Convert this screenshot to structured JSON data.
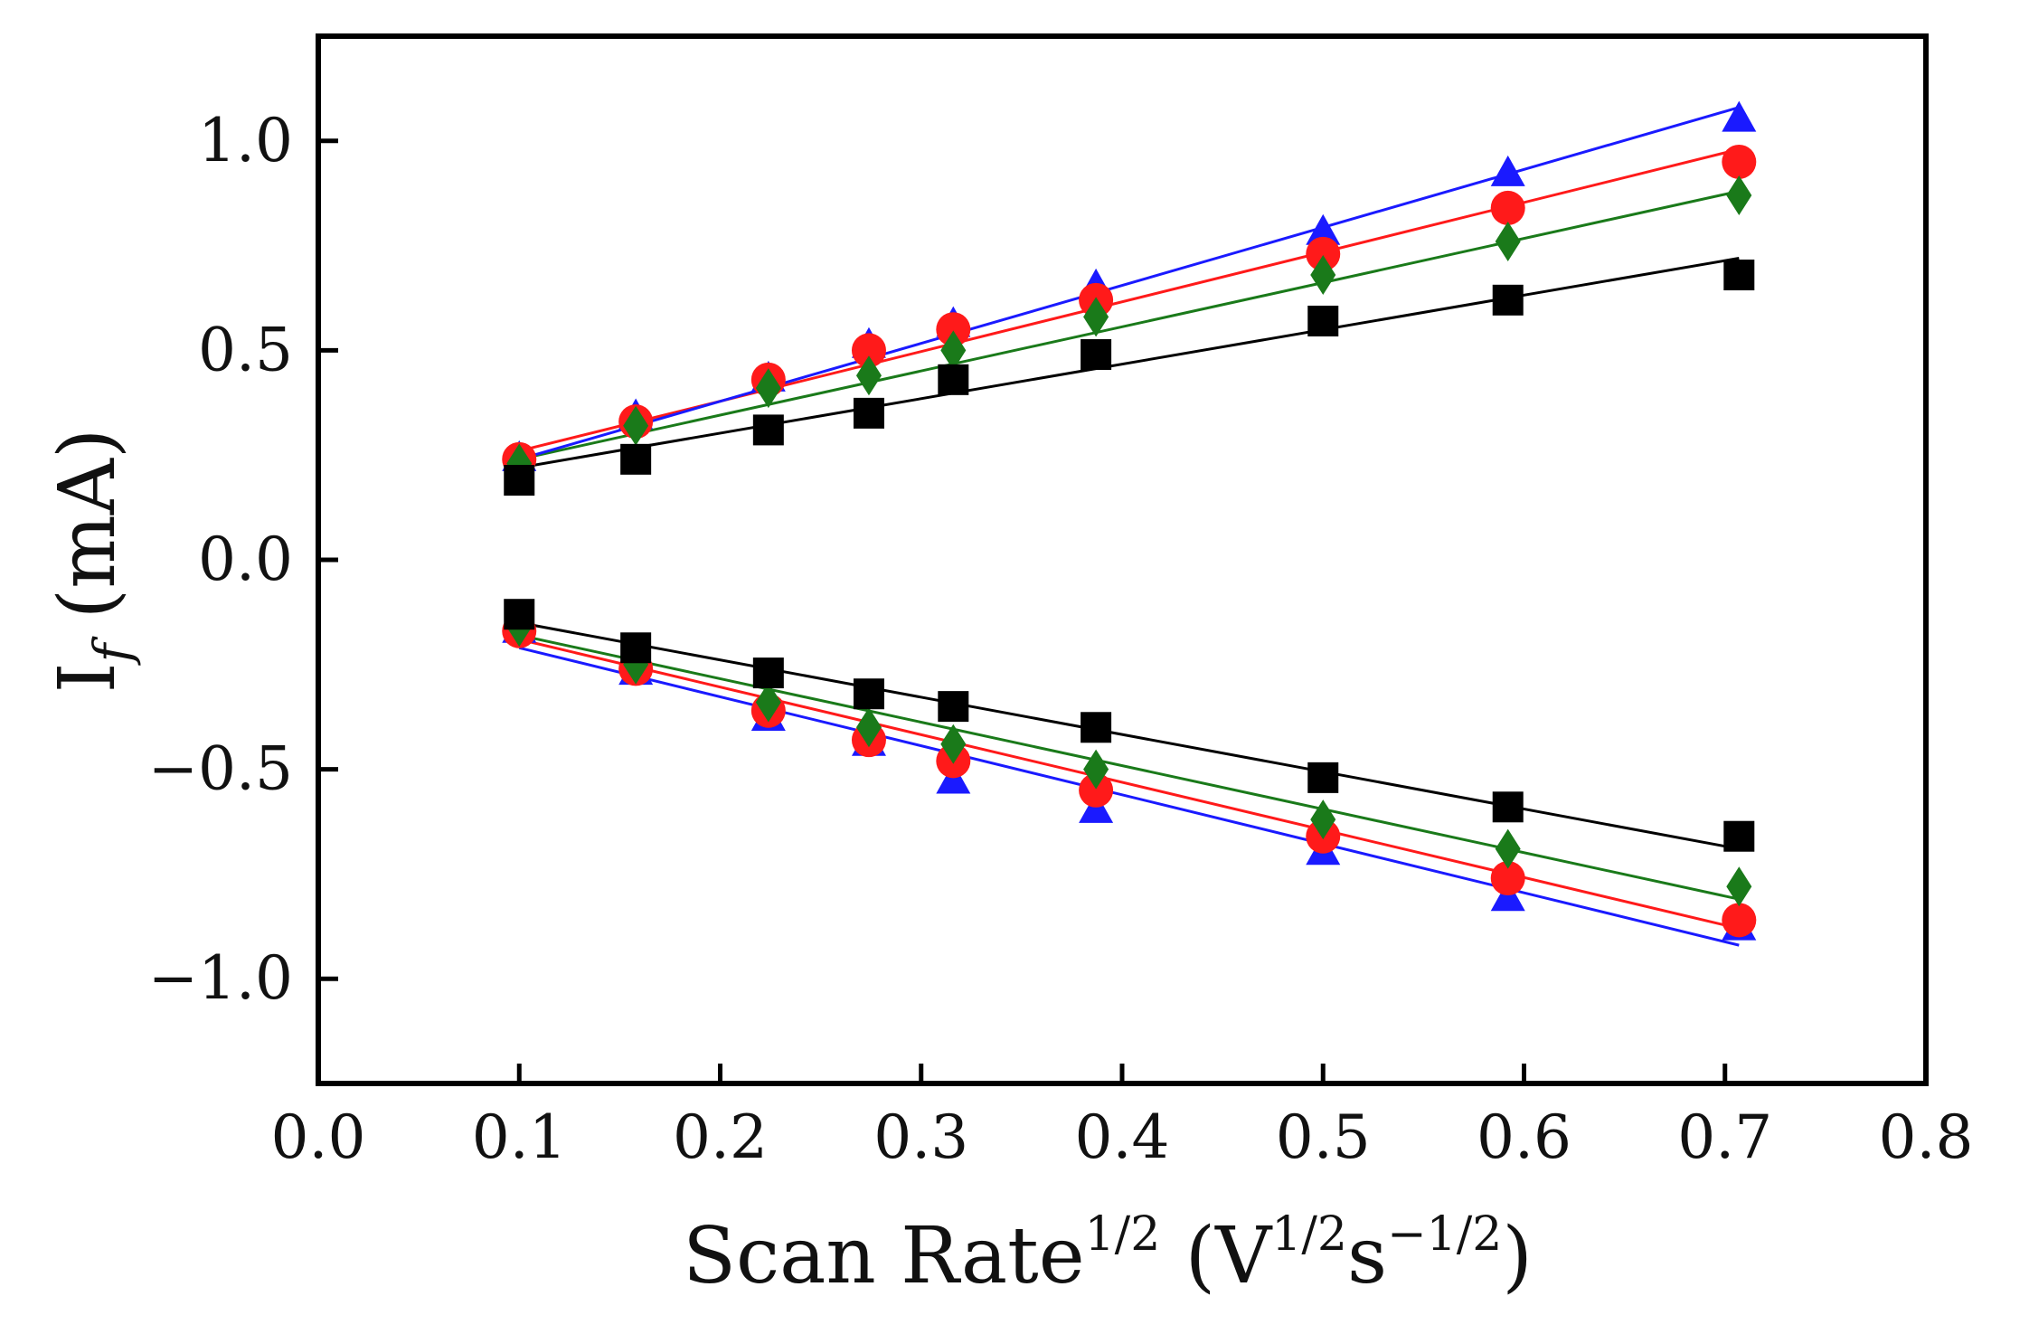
{
  "chart_data": {
    "type": "scatter",
    "title": "",
    "xlabel": {
      "main": "Scan Rate",
      "main_sup": "1/2",
      "paren_open": " (V",
      "unit_sup1": "1/2",
      "unit_s": "s",
      "unit_sup2": "−1/2",
      "paren_close": ")"
    },
    "ylabel": {
      "main": "I",
      "sub": "f",
      "unit": " (mA)"
    },
    "xlim": [
      0.0,
      0.8
    ],
    "ylim": [
      -1.25,
      1.25
    ],
    "x_ticks": [
      {
        "value": 0.0,
        "label": "0.0"
      },
      {
        "value": 0.1,
        "label": "0.1"
      },
      {
        "value": 0.2,
        "label": "0.2"
      },
      {
        "value": 0.3,
        "label": "0.3"
      },
      {
        "value": 0.4,
        "label": "0.4"
      },
      {
        "value": 0.5,
        "label": "0.5"
      },
      {
        "value": 0.6,
        "label": "0.6"
      },
      {
        "value": 0.7,
        "label": "0.7"
      },
      {
        "value": 0.8,
        "label": "0.8"
      }
    ],
    "y_ticks": [
      {
        "value": -1.0,
        "label": "−1.0"
      },
      {
        "value": -0.5,
        "label": "−0.5"
      },
      {
        "value": 0.0,
        "label": "0.0"
      },
      {
        "value": 0.5,
        "label": "0.5"
      },
      {
        "value": 1.0,
        "label": "1.0"
      }
    ],
    "grid": false,
    "legend": "none",
    "x": [
      0.1,
      0.158,
      0.224,
      0.274,
      0.316,
      0.387,
      0.5,
      0.592,
      0.707
    ],
    "series": [
      {
        "name": "black-anodic",
        "color": "#000000",
        "marker": "square",
        "values": [
          0.19,
          0.24,
          0.31,
          0.35,
          0.43,
          0.49,
          0.57,
          0.62,
          0.68
        ],
        "fit": {
          "x": [
            0.1,
            0.707
          ],
          "y": [
            0.22,
            0.72
          ]
        }
      },
      {
        "name": "green-anodic",
        "color": "#1a7a1a",
        "marker": "diamond",
        "values": [
          0.23,
          0.32,
          0.41,
          0.44,
          0.5,
          0.58,
          0.68,
          0.76,
          0.87
        ],
        "fit": {
          "x": [
            0.1,
            0.707
          ],
          "y": [
            0.24,
            0.88
          ]
        }
      },
      {
        "name": "red-anodic",
        "color": "#ff1a1a",
        "marker": "circle",
        "values": [
          0.24,
          0.33,
          0.43,
          0.5,
          0.55,
          0.62,
          0.73,
          0.84,
          0.95
        ],
        "fit": {
          "x": [
            0.1,
            0.707
          ],
          "y": [
            0.26,
            0.98
          ]
        }
      },
      {
        "name": "blue-anodic",
        "color": "#1a1aff",
        "marker": "triangle",
        "values": [
          0.24,
          0.34,
          0.43,
          0.51,
          0.56,
          0.65,
          0.78,
          0.92,
          1.05
        ],
        "fit": {
          "x": [
            0.1,
            0.707
          ],
          "y": [
            0.24,
            1.08
          ]
        }
      },
      {
        "name": "black-cathodic",
        "color": "#000000",
        "marker": "square",
        "values": [
          -0.13,
          -0.21,
          -0.27,
          -0.32,
          -0.35,
          -0.4,
          -0.52,
          -0.59,
          -0.66
        ],
        "fit": {
          "x": [
            0.1,
            0.707
          ],
          "y": [
            -0.15,
            -0.69
          ]
        }
      },
      {
        "name": "green-cathodic",
        "color": "#1a7a1a",
        "marker": "diamond",
        "values": [
          -0.16,
          -0.25,
          -0.34,
          -0.4,
          -0.44,
          -0.5,
          -0.62,
          -0.69,
          -0.78
        ],
        "fit": {
          "x": [
            0.1,
            0.707
          ],
          "y": [
            -0.18,
            -0.81
          ]
        }
      },
      {
        "name": "red-cathodic",
        "color": "#ff1a1a",
        "marker": "circle",
        "values": [
          -0.17,
          -0.26,
          -0.36,
          -0.43,
          -0.48,
          -0.55,
          -0.66,
          -0.76,
          -0.86
        ],
        "fit": {
          "x": [
            0.1,
            0.707
          ],
          "y": [
            -0.19,
            -0.88
          ]
        }
      },
      {
        "name": "blue-cathodic",
        "color": "#1a1aff",
        "marker": "triangle",
        "values": [
          -0.17,
          -0.27,
          -0.38,
          -0.44,
          -0.53,
          -0.6,
          -0.7,
          -0.81,
          -0.88
        ],
        "fit": {
          "x": [
            0.1,
            0.707
          ],
          "y": [
            -0.21,
            -0.92
          ]
        }
      }
    ]
  }
}
